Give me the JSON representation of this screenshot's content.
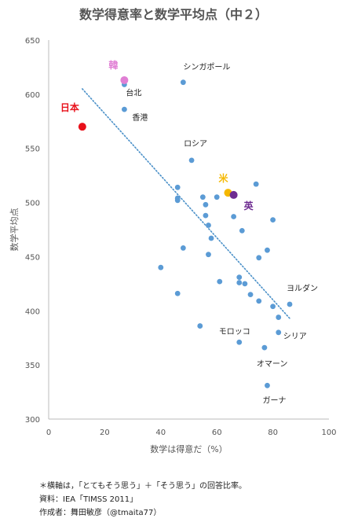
{
  "chart_data": {
    "type": "scatter",
    "title": "数学得意率と数学平均点（中２）",
    "xlabel": "数学は得意だ（%）",
    "ylabel": "数学平均点",
    "xlim": [
      0,
      100
    ],
    "ylim": [
      300,
      650
    ],
    "x_ticks": [
      "0",
      "20",
      "40",
      "60",
      "80",
      "100"
    ],
    "y_ticks": [
      "300",
      "350",
      "400",
      "450",
      "500",
      "550",
      "600",
      "650"
    ],
    "grid": false,
    "trendline": {
      "style": "dotted",
      "color": "#4a90c8",
      "start": [
        12,
        605
      ],
      "end": [
        86,
        393
      ]
    },
    "highlighted": [
      {
        "label": "日本",
        "x": 12,
        "y": 570,
        "color": "#e8101a"
      },
      {
        "label": "韓",
        "x": 27,
        "y": 613,
        "color": "#e07fd4"
      },
      {
        "label": "米",
        "x": 64,
        "y": 509,
        "color": "#f5b800"
      },
      {
        "label": "英",
        "x": 66,
        "y": 507,
        "color": "#6e2c91"
      }
    ],
    "labeled_points": [
      {
        "label": "シンガポール",
        "x": 48,
        "y": 611
      },
      {
        "label": "台北",
        "x": 27,
        "y": 609
      },
      {
        "label": "香港",
        "x": 27,
        "y": 586
      },
      {
        "label": "ロシア",
        "x": 51,
        "y": 539
      },
      {
        "label": "ヨルダン",
        "x": 86,
        "y": 406
      },
      {
        "label": "モロッコ",
        "x": 68,
        "y": 371
      },
      {
        "label": "シリア",
        "x": 82,
        "y": 380
      },
      {
        "label": "オマーン",
        "x": 77,
        "y": 366
      },
      {
        "label": "ガーナ",
        "x": 78,
        "y": 331
      }
    ],
    "points": [
      {
        "x": 46,
        "y": 514
      },
      {
        "x": 46,
        "y": 504
      },
      {
        "x": 46,
        "y": 502
      },
      {
        "x": 55,
        "y": 505
      },
      {
        "x": 56,
        "y": 498
      },
      {
        "x": 60,
        "y": 505
      },
      {
        "x": 74,
        "y": 517
      },
      {
        "x": 56,
        "y": 488
      },
      {
        "x": 57,
        "y": 479
      },
      {
        "x": 58,
        "y": 467
      },
      {
        "x": 66,
        "y": 487
      },
      {
        "x": 69,
        "y": 474
      },
      {
        "x": 80,
        "y": 484
      },
      {
        "x": 48,
        "y": 458
      },
      {
        "x": 57,
        "y": 452
      },
      {
        "x": 78,
        "y": 456
      },
      {
        "x": 75,
        "y": 449
      },
      {
        "x": 40,
        "y": 440
      },
      {
        "x": 61,
        "y": 427
      },
      {
        "x": 68,
        "y": 431
      },
      {
        "x": 68,
        "y": 426
      },
      {
        "x": 70,
        "y": 425
      },
      {
        "x": 72,
        "y": 415
      },
      {
        "x": 75,
        "y": 409
      },
      {
        "x": 46,
        "y": 416
      },
      {
        "x": 80,
        "y": 404
      },
      {
        "x": 82,
        "y": 394
      },
      {
        "x": 54,
        "y": 386
      }
    ]
  },
  "notes": [
    "＊横軸は，「とてもそう思う」＋「そう思う」の回答比率。",
    "資料：IEA「TIMSS 2011」",
    "作成者：舞田敏彦（@tmaita77）"
  ]
}
